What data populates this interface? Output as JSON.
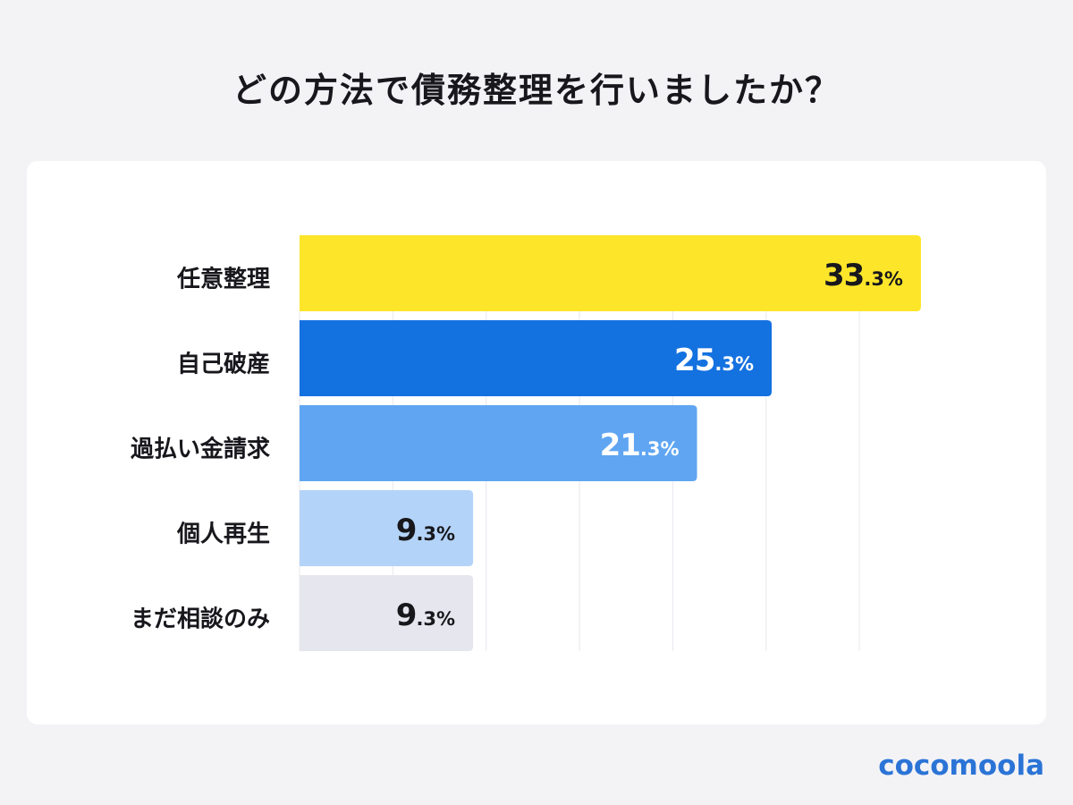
{
  "chart_data": {
    "type": "bar",
    "orientation": "horizontal",
    "title": "どの方法で債務整理を行いましたか？",
    "categories": [
      "任意整理",
      "自己破産",
      "過払い金請求",
      "個人再生",
      "まだ相談のみ"
    ],
    "values": [
      33.3,
      25.3,
      21.3,
      9.3,
      9.3
    ],
    "value_labels": [
      {
        "main": "33",
        "sub": ".3%"
      },
      {
        "main": "25",
        "sub": ".3%"
      },
      {
        "main": "21",
        "sub": ".3%"
      },
      {
        "main": "9",
        "sub": ".3%"
      },
      {
        "main": "9",
        "sub": ".3%"
      }
    ],
    "colors": [
      "#fde62a",
      "#1471e0",
      "#5fa5f2",
      "#b4d3f8",
      "#e6e7ee"
    ],
    "label_colors": [
      "#17171c",
      "#ffffff",
      "#ffffff",
      "#17171c",
      "#17171c"
    ],
    "xlim": [
      0,
      35
    ],
    "grid_step": 5,
    "grid": true,
    "xlabel": "",
    "ylabel": ""
  },
  "brand": {
    "logo": "cocomoola",
    "color": "#2b74d6"
  }
}
